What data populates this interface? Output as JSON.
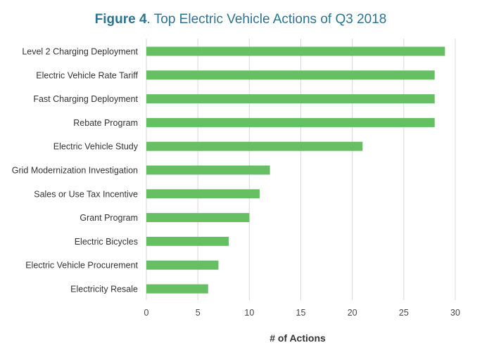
{
  "colors": {
    "title": "#2b7391",
    "bar": "#66bf62",
    "grid": "#d9d9d9",
    "text": "#333333"
  },
  "chart_data": {
    "type": "bar",
    "orientation": "horizontal",
    "title_bold": "Figure 4",
    "title_rest": ". Top Electric Vehicle Actions of Q3 2018",
    "xlabel": "# of Actions",
    "ylabel": "",
    "xlim": [
      0,
      30
    ],
    "xticks": [
      0,
      5,
      10,
      15,
      20,
      25,
      30
    ],
    "grid": "vertical",
    "legend": "none",
    "categories": [
      "Level 2 Charging Deployment",
      "Electric Vehicle Rate Tariff",
      "Fast Charging Deployment",
      "Rebate Program",
      "Electric Vehicle Study",
      "Grid Modernization Investigation",
      "Sales or Use Tax Incentive",
      "Grant Program",
      "Electric Bicycles",
      "Electric Vehicle Procurement",
      "Electricity Resale"
    ],
    "values": [
      29,
      28,
      28,
      28,
      21,
      12,
      11,
      10,
      8,
      7,
      6
    ]
  }
}
